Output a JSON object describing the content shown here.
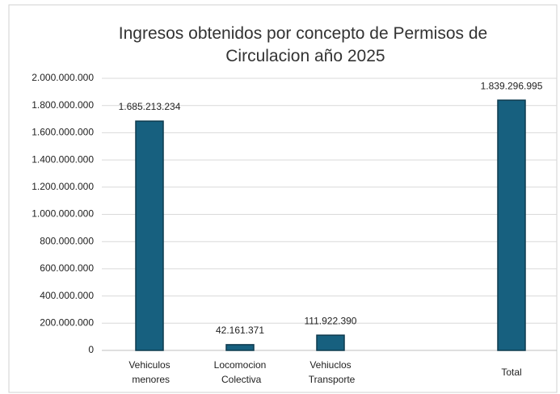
{
  "chart_data": {
    "type": "bar",
    "title": "Ingresos obtenidos por concepto de Permisos de Circulacion año 2025",
    "categories": [
      "Vehiculos menores",
      "Locomocion Colectiva",
      "Vehiuclos Transporte",
      null,
      "Total"
    ],
    "values": [
      1685213234,
      42161371,
      111922390,
      null,
      1839296995
    ],
    "value_labels": [
      "1.685.213.234",
      "42.161.371",
      "111.922.390",
      null,
      "1.839.296.995"
    ],
    "color": "#17607f",
    "ylim": [
      0,
      2000000000
    ],
    "yticks": [
      0,
      {
        "value": 200000000,
        "label": "200.000.000"
      },
      {
        "value": 400000000,
        "label": "400.000.000"
      },
      {
        "value": 600000000,
        "label": "600.000.000"
      },
      {
        "value": 800000000,
        "label": "800.000.000"
      },
      {
        "value": 1000000000,
        "label": "1.000.000.000"
      },
      {
        "value": 1200000000,
        "label": "1.200.000.000"
      },
      {
        "value": 1400000000,
        "label": "1.400.000.000"
      },
      {
        "value": 1600000000,
        "label": "1.600.000.000"
      },
      {
        "value": 1800000000,
        "label": "1.800.000.000"
      },
      {
        "value": 2000000000,
        "label": "2.000.000.000"
      }
    ],
    "grid": true
  }
}
